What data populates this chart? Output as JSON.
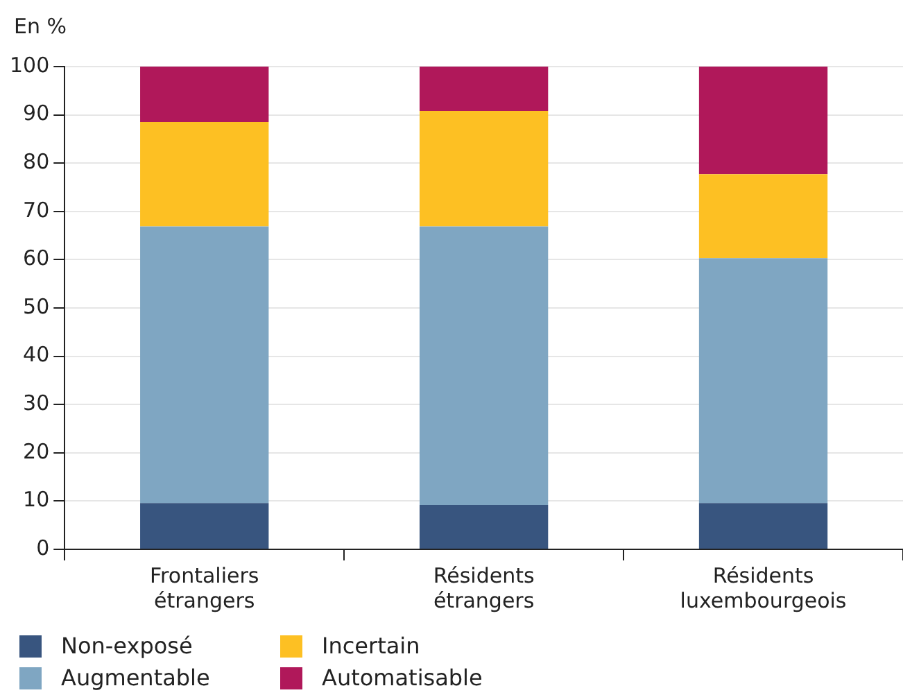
{
  "chart_data": {
    "type": "bar",
    "stacked": true,
    "ylabel": "En %",
    "categories": [
      "Frontaliers étrangers",
      "Résidents étrangers",
      "Résidents luxembourgeois"
    ],
    "series": [
      {
        "name": "Non-exposé",
        "color": "#38557f",
        "values": [
          9.6,
          9.2,
          9.6
        ]
      },
      {
        "name": "Augmentable",
        "color": "#7fa6c2",
        "values": [
          57.3,
          57.7,
          50.7
        ]
      },
      {
        "name": "Incertain",
        "color": "#fdc023",
        "values": [
          21.6,
          23.9,
          17.4
        ]
      },
      {
        "name": "Automatisable",
        "color": "#b0185a",
        "values": [
          11.5,
          9.2,
          22.3
        ]
      }
    ],
    "ylim": [
      0,
      100
    ],
    "yticks": [
      0,
      10,
      20,
      30,
      40,
      50,
      60,
      70,
      80,
      90,
      100
    ],
    "grid": "y",
    "legend": "bottom left"
  }
}
